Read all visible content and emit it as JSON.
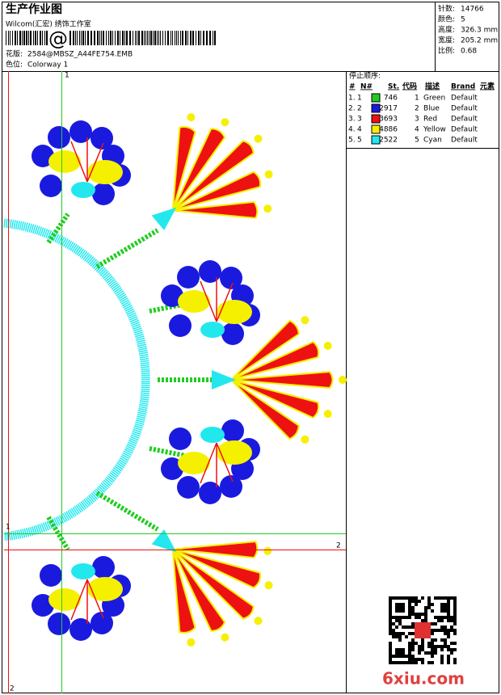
{
  "header": {
    "title": "生产作业图",
    "studio": "Wilcom(汇宏) 绣饰工作室",
    "design_label": "花版:",
    "design": "2584@MBSZ_A44FE754.EMB",
    "colorway_label": "色位:",
    "colorway": "Colorway 1"
  },
  "stats": [
    {
      "label": "针数:",
      "value": "14766"
    },
    {
      "label": "颜色:",
      "value": "5"
    },
    {
      "label": "高度:",
      "value": "326.3 mm"
    },
    {
      "label": "宽度:",
      "value": "205.2 mm"
    },
    {
      "label": "比例:",
      "value": "0.68"
    }
  ],
  "stop_sequence": {
    "title": "停止顺序:",
    "headers": [
      "#",
      "N#",
      "St.",
      "代码",
      "描述",
      "Brand",
      "元素"
    ],
    "rows": [
      {
        "num": "1.",
        "n": "1",
        "color": "#22cc22",
        "st": 746,
        "code": "1",
        "desc": "Green",
        "brand": "Default"
      },
      {
        "num": "2.",
        "n": "2",
        "color": "#1a1adf",
        "st": 2917,
        "code": "2",
        "desc": "Blue",
        "brand": "Default"
      },
      {
        "num": "3.",
        "n": "3",
        "color": "#ee1111",
        "st": 3693,
        "code": "3",
        "desc": "Red",
        "brand": "Default"
      },
      {
        "num": "4.",
        "n": "4",
        "color": "#f5f000",
        "st": 4886,
        "code": "4",
        "desc": "Yellow",
        "brand": "Default"
      },
      {
        "num": "5.",
        "n": "5",
        "color": "#22e8ee",
        "st": 2522,
        "code": "5",
        "desc": "Cyan",
        "brand": "Default"
      }
    ]
  },
  "guides": {
    "top_1": "1",
    "right_2": "2",
    "left_1": "1",
    "bottom_2": "2"
  },
  "watermark": "6xiu.com"
}
